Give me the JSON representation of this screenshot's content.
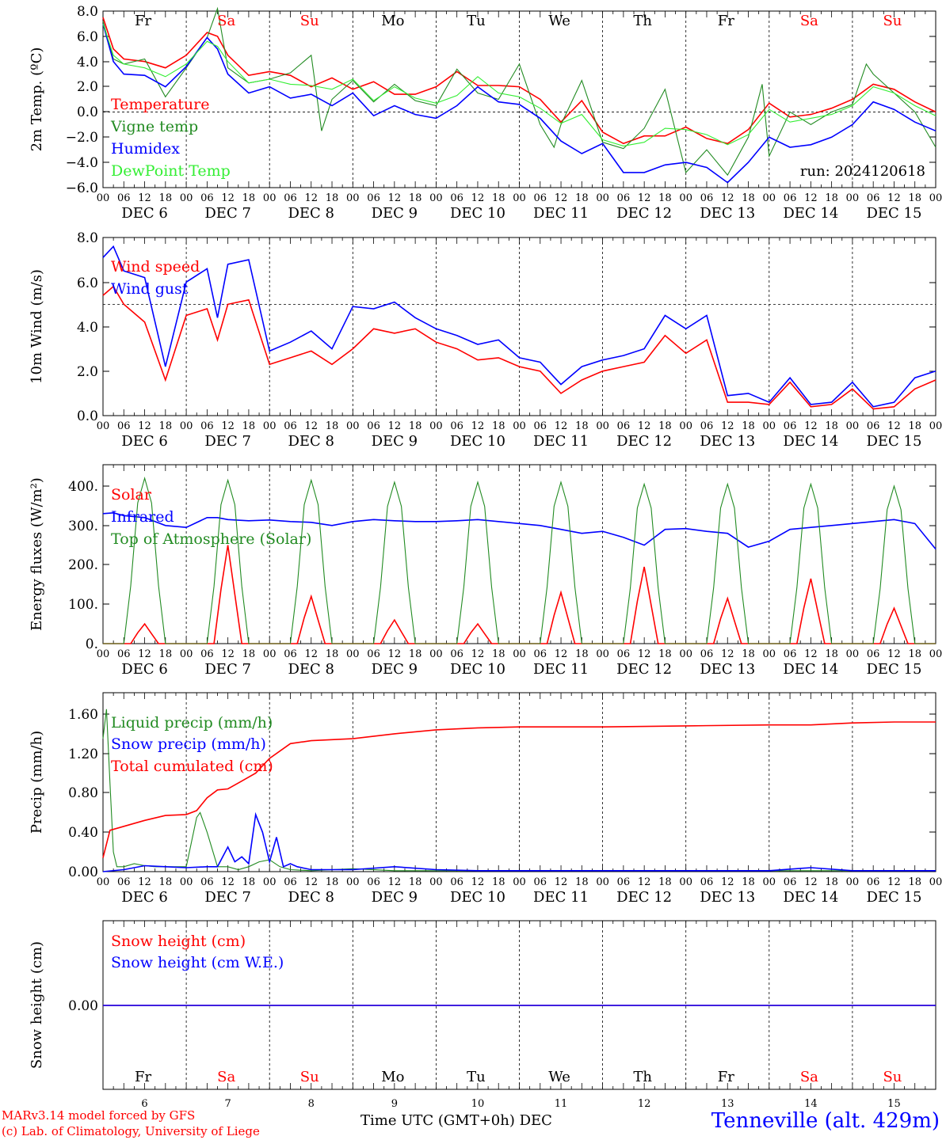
{
  "days": [
    "DEC 6",
    "DEC 7",
    "DEC 8",
    "DEC 9",
    "DEC 10",
    "DEC 11",
    "DEC 12",
    "DEC 13",
    "DEC 14",
    "DEC 15"
  ],
  "weekdays": [
    "Fr",
    "Sa",
    "Su",
    "Mo",
    "Tu",
    "We",
    "Th",
    "Fr",
    "Sa",
    "Su"
  ],
  "weekend_flags": [
    false,
    true,
    true,
    false,
    false,
    false,
    false,
    false,
    true,
    true
  ],
  "day_numbers": [
    "6",
    "7",
    "8",
    "9",
    "10",
    "11",
    "12",
    "13",
    "14",
    "15"
  ],
  "hour_ticks": [
    "00",
    "06",
    "12",
    "18"
  ],
  "last_tick": "00",
  "colors": {
    "red": "#ff0000",
    "green": "#228b22",
    "blue": "#0000ff",
    "light_green": "#33ee33",
    "black": "#000000"
  },
  "footer": {
    "model_line": "MARv3.14 model forced by GFS",
    "credit_line": "(c) Lab. of Climatology, University of Liege",
    "time_label": "Time UTC (GMT+0h) DEC",
    "station": "Tenneville (alt. 429m)"
  },
  "chart_data": [
    {
      "type": "line",
      "ylabel": "2m Temp. (ºC)",
      "yticks": [
        "8.0",
        "6.0",
        "4.0",
        "2.0",
        "0.0",
        "−2.0",
        "−4.0",
        "−6.0"
      ],
      "ylim": [
        -6,
        8
      ],
      "reference_line": 0,
      "run_label": "run: 2024120618",
      "show_weekdays": true,
      "series": [
        {
          "name": "Temperature",
          "color": "red",
          "hours": [
            0,
            3,
            6,
            12,
            18,
            24,
            30,
            33,
            36,
            42,
            48,
            54,
            60,
            66,
            72,
            78,
            84,
            90,
            96,
            102,
            108,
            114,
            120,
            126,
            132,
            138,
            144,
            150,
            156,
            162,
            168,
            174,
            180,
            186,
            192,
            198,
            204,
            210,
            216,
            222,
            228,
            234,
            240
          ],
          "values": [
            7.5,
            5.0,
            4.2,
            4.0,
            3.5,
            4.5,
            6.3,
            6.0,
            4.5,
            2.9,
            3.2,
            2.9,
            2.0,
            2.7,
            1.8,
            2.4,
            1.4,
            1.4,
            2.0,
            3.2,
            2.1,
            2.1,
            2.0,
            1.0,
            -0.8,
            0.9,
            -1.6,
            -2.5,
            -1.9,
            -1.9,
            -1.2,
            -2.1,
            -2.5,
            -1.4,
            0.7,
            -0.4,
            -0.2,
            0.3,
            1.0,
            2.2,
            1.8,
            0.8,
            0.0
          ]
        },
        {
          "name": "Vigne temp",
          "color": "green",
          "hours": [
            0,
            3,
            6,
            12,
            18,
            24,
            30,
            33,
            36,
            42,
            48,
            54,
            60,
            63,
            66,
            72,
            78,
            84,
            90,
            96,
            102,
            108,
            114,
            120,
            126,
            130,
            132,
            138,
            144,
            150,
            156,
            162,
            168,
            174,
            180,
            186,
            190,
            192,
            198,
            204,
            210,
            216,
            220,
            222,
            228,
            234,
            240
          ],
          "values": [
            7.2,
            4.2,
            3.8,
            4.2,
            1.2,
            3.5,
            5.9,
            8.2,
            3.5,
            2.3,
            2.6,
            3.1,
            4.5,
            -1.5,
            1.0,
            2.5,
            0.8,
            2.2,
            0.9,
            0.5,
            3.4,
            1.5,
            1.0,
            3.8,
            -1.0,
            -2.8,
            -1.0,
            2.5,
            -2.4,
            -2.9,
            -1.3,
            1.8,
            -4.8,
            -3.0,
            -5.0,
            -2.0,
            2.2,
            -3.5,
            0.0,
            -1.0,
            0.0,
            0.6,
            3.8,
            3.0,
            1.5,
            0.0,
            -2.8
          ]
        },
        {
          "name": "Humidex",
          "color": "blue",
          "hours": [
            0,
            3,
            6,
            12,
            18,
            24,
            30,
            33,
            36,
            42,
            48,
            54,
            60,
            66,
            72,
            78,
            84,
            90,
            96,
            102,
            108,
            114,
            120,
            126,
            132,
            138,
            144,
            150,
            156,
            162,
            168,
            174,
            180,
            186,
            192,
            198,
            204,
            210,
            216,
            222,
            228,
            234,
            240
          ],
          "values": [
            7.0,
            4.0,
            3.0,
            2.9,
            2.0,
            3.6,
            5.9,
            5.0,
            3.0,
            1.5,
            2.0,
            1.1,
            1.4,
            0.5,
            1.5,
            -0.3,
            0.5,
            -0.2,
            -0.5,
            0.5,
            2.0,
            0.8,
            0.6,
            -0.5,
            -2.3,
            -3.3,
            -2.5,
            -4.8,
            -4.8,
            -4.2,
            -4.0,
            -4.4,
            -5.6,
            -4.0,
            -2.0,
            -2.8,
            -2.6,
            -2.0,
            -1.0,
            0.8,
            0.2,
            -0.8,
            -1.5
          ]
        },
        {
          "name": "DewPoint Temp",
          "color": "light_green",
          "hours": [
            0,
            3,
            6,
            12,
            18,
            24,
            30,
            33,
            36,
            42,
            48,
            54,
            60,
            66,
            72,
            78,
            84,
            90,
            96,
            102,
            108,
            114,
            120,
            126,
            132,
            138,
            144,
            150,
            156,
            162,
            168,
            174,
            180,
            186,
            192,
            198,
            204,
            210,
            216,
            222,
            228,
            234,
            240
          ],
          "values": [
            7.0,
            4.5,
            3.8,
            3.5,
            2.8,
            3.8,
            5.6,
            5.2,
            4.0,
            2.3,
            2.6,
            2.2,
            2.1,
            1.8,
            2.6,
            0.9,
            2.0,
            1.1,
            0.7,
            1.3,
            2.8,
            1.5,
            1.2,
            0.3,
            -0.9,
            -0.2,
            -2.2,
            -2.7,
            -2.4,
            -1.3,
            -1.4,
            -1.8,
            -2.6,
            -1.8,
            0.2,
            -0.8,
            -0.5,
            -0.2,
            0.5,
            2.0,
            1.5,
            0.5,
            -0.3
          ]
        }
      ]
    },
    {
      "type": "line",
      "ylabel": "10m Wind (m/s)",
      "yticks": [
        "8.0",
        "6.0",
        "4.0",
        "2.0",
        "0.0"
      ],
      "ylim": [
        0,
        8
      ],
      "reference_line": 5,
      "show_weekdays": false,
      "series": [
        {
          "name": "Wind speed",
          "color": "red",
          "hours": [
            0,
            3,
            6,
            12,
            18,
            24,
            30,
            33,
            36,
            42,
            48,
            54,
            60,
            66,
            72,
            78,
            84,
            90,
            96,
            102,
            108,
            114,
            120,
            126,
            132,
            138,
            144,
            150,
            156,
            162,
            168,
            174,
            180,
            186,
            192,
            198,
            204,
            210,
            216,
            222,
            228,
            234,
            240
          ],
          "values": [
            5.4,
            5.8,
            5.0,
            4.2,
            1.6,
            4.5,
            4.8,
            3.4,
            5.0,
            5.2,
            2.3,
            2.6,
            2.9,
            2.3,
            3.0,
            3.9,
            3.7,
            3.9,
            3.3,
            3.0,
            2.5,
            2.6,
            2.2,
            2.0,
            1.0,
            1.6,
            2.0,
            2.2,
            2.4,
            3.6,
            2.8,
            3.4,
            0.6,
            0.6,
            0.5,
            1.5,
            0.4,
            0.5,
            1.2,
            0.3,
            0.4,
            1.2,
            1.6
          ]
        },
        {
          "name": "Wind gust",
          "color": "blue",
          "hours": [
            0,
            3,
            6,
            12,
            18,
            24,
            30,
            33,
            36,
            42,
            48,
            54,
            60,
            66,
            72,
            78,
            84,
            90,
            96,
            102,
            108,
            114,
            120,
            126,
            132,
            138,
            144,
            150,
            156,
            162,
            168,
            174,
            180,
            186,
            192,
            198,
            204,
            210,
            216,
            222,
            228,
            234,
            240
          ],
          "values": [
            7.1,
            7.6,
            6.5,
            6.2,
            2.2,
            6.0,
            6.6,
            4.4,
            6.8,
            7.0,
            2.9,
            3.3,
            3.8,
            3.0,
            4.9,
            4.8,
            5.1,
            4.4,
            3.9,
            3.6,
            3.2,
            3.4,
            2.6,
            2.4,
            1.4,
            2.2,
            2.5,
            2.7,
            3.0,
            4.5,
            3.9,
            4.5,
            0.9,
            1.0,
            0.6,
            1.7,
            0.5,
            0.6,
            1.5,
            0.4,
            0.6,
            1.7,
            2.0
          ]
        }
      ]
    },
    {
      "type": "line",
      "ylabel": "Energy fluxes (W/m²)",
      "yticks": [
        "400.",
        "300.",
        "200.",
        "100.",
        "0."
      ],
      "ylim": [
        0,
        450
      ],
      "show_weekdays": false,
      "series": [
        {
          "name": "Solar",
          "color": "red",
          "daily_peak_values": [
            50,
            250,
            120,
            60,
            50,
            130,
            195,
            115,
            165,
            90
          ]
        },
        {
          "name": "Infrared",
          "color": "blue",
          "hours": [
            0,
            3,
            6,
            12,
            18,
            24,
            30,
            33,
            36,
            42,
            48,
            54,
            60,
            66,
            72,
            78,
            84,
            90,
            96,
            102,
            108,
            114,
            120,
            126,
            132,
            138,
            144,
            150,
            156,
            162,
            168,
            174,
            180,
            186,
            192,
            198,
            204,
            210,
            216,
            222,
            228,
            234,
            240
          ],
          "values": [
            330,
            332,
            325,
            320,
            300,
            295,
            320,
            320,
            315,
            312,
            314,
            310,
            308,
            300,
            310,
            315,
            312,
            310,
            310,
            312,
            315,
            310,
            305,
            300,
            290,
            280,
            285,
            270,
            250,
            290,
            292,
            285,
            280,
            245,
            260,
            290,
            295,
            300,
            305,
            310,
            315,
            305,
            240
          ]
        },
        {
          "name": "Top of Atmosphere (Solar)",
          "color": "green",
          "daily_peak_values": [
            420,
            415,
            415,
            410,
            410,
            410,
            405,
            405,
            405,
            400
          ]
        }
      ]
    },
    {
      "type": "line",
      "ylabel": "Precip (mm/h)",
      "yticks": [
        "1.60",
        "1.20",
        "0.80",
        "0.40",
        "0.00"
      ],
      "ylim": [
        0,
        1.8
      ],
      "show_weekdays": false,
      "series": [
        {
          "name": "Liquid precip (mm/h)",
          "color": "green",
          "hours": [
            0,
            1,
            2,
            3,
            4,
            6,
            9,
            12,
            15,
            18,
            21,
            24,
            27,
            28,
            30,
            33,
            36,
            39,
            42,
            45,
            48,
            51,
            54,
            60,
            72,
            84,
            96,
            108,
            120,
            132,
            144,
            156,
            168,
            180,
            192,
            204,
            216,
            228,
            240
          ],
          "values": [
            1.35,
            1.65,
            0.9,
            0.2,
            0.05,
            0.05,
            0.08,
            0.06,
            0.05,
            0.05,
            0.05,
            0.05,
            0.55,
            0.6,
            0.4,
            0.05,
            0.05,
            0.02,
            0.05,
            0.1,
            0.12,
            0.05,
            0.02,
            0.01,
            0.03,
            0.01,
            0.01,
            0.01,
            0.01,
            0.01,
            0.01,
            0.01,
            0.01,
            0.01,
            0.01,
            0.01,
            0.01,
            0.01,
            0.01
          ]
        },
        {
          "name": "Snow precip (mm/h)",
          "color": "blue",
          "hours": [
            0,
            6,
            12,
            18,
            24,
            30,
            33,
            36,
            38,
            40,
            42,
            44,
            46,
            48,
            50,
            52,
            54,
            56,
            60,
            72,
            84,
            96,
            108,
            120,
            132,
            144,
            156,
            168,
            180,
            192,
            204,
            216,
            228,
            240
          ],
          "values": [
            0,
            0.02,
            0.06,
            0.05,
            0.04,
            0.05,
            0.05,
            0.25,
            0.1,
            0.15,
            0.08,
            0.58,
            0.4,
            0.1,
            0.35,
            0.05,
            0.08,
            0.05,
            0.02,
            0.02,
            0.05,
            0.02,
            0.01,
            0.01,
            0.01,
            0.01,
            0.01,
            0.01,
            0.01,
            0.01,
            0.04,
            0.01,
            0.01,
            0.01
          ]
        },
        {
          "name": "Total cumulated (cm)",
          "color": "red",
          "hours": [
            0,
            2,
            6,
            12,
            18,
            24,
            27,
            30,
            33,
            36,
            40,
            44,
            48,
            54,
            60,
            66,
            72,
            84,
            96,
            108,
            120,
            144,
            168,
            192,
            204,
            216,
            228,
            240
          ],
          "values": [
            0.14,
            0.42,
            0.46,
            0.52,
            0.57,
            0.58,
            0.62,
            0.75,
            0.83,
            0.84,
            0.92,
            1.0,
            1.15,
            1.3,
            1.33,
            1.34,
            1.35,
            1.4,
            1.44,
            1.46,
            1.47,
            1.47,
            1.48,
            1.49,
            1.49,
            1.51,
            1.52,
            1.52
          ]
        }
      ]
    },
    {
      "type": "line",
      "ylabel": "Snow height (cm)",
      "yticks": [
        "0.00"
      ],
      "ylim": [
        -1,
        1
      ],
      "show_weekdays": true,
      "weekday_position": "bottom",
      "series": [
        {
          "name": "Snow height (cm)",
          "color": "red",
          "hours": [
            0,
            240
          ],
          "values": [
            0,
            0
          ]
        },
        {
          "name": "Snow height (cm W.E.)",
          "color": "blue",
          "hours": [
            0,
            240
          ],
          "values": [
            0,
            0
          ]
        }
      ]
    }
  ]
}
